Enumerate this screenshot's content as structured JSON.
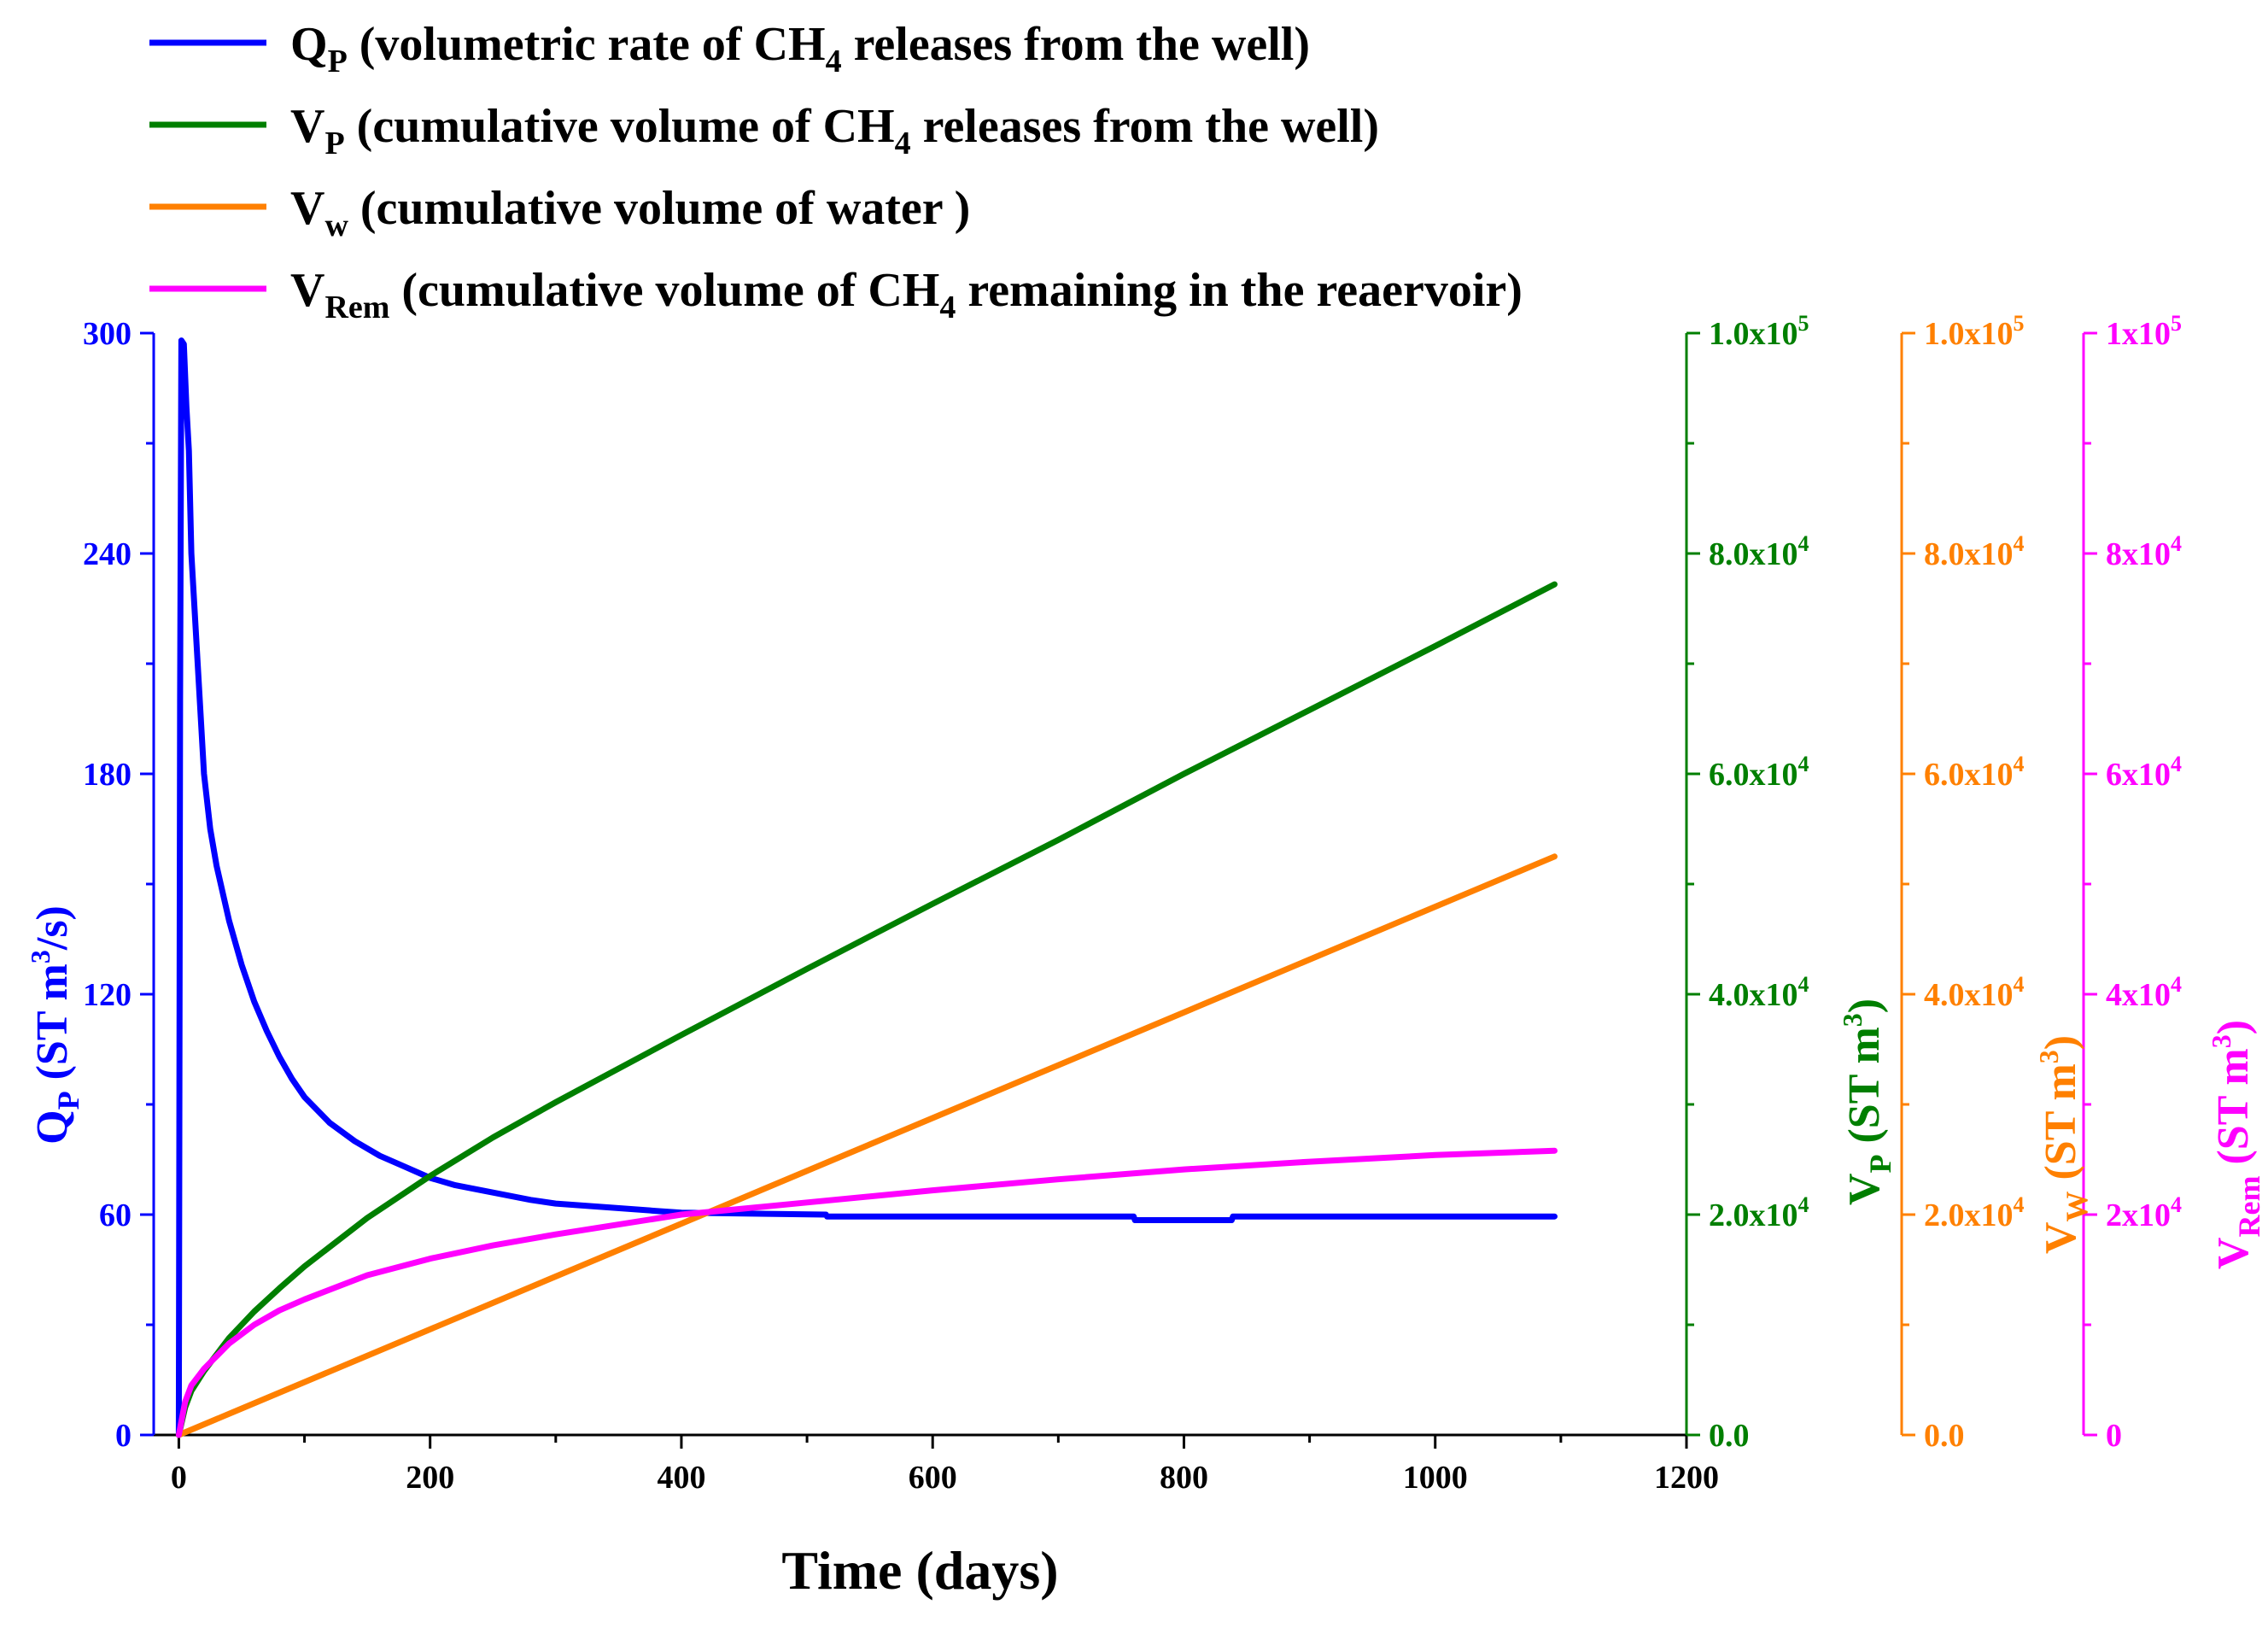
{
  "chart_data": {
    "type": "line",
    "x_axis": {
      "label": "Time (days)",
      "range": [
        -20,
        1200
      ],
      "ticks": [
        0,
        200,
        400,
        600,
        800,
        1000,
        1200
      ],
      "tick_labels": [
        "0",
        "200",
        "400",
        "600",
        "800",
        "1000",
        "1200"
      ]
    },
    "y_axes": [
      {
        "id": "qp",
        "color": "#0000ff",
        "title": {
          "main": "Q",
          "sub": "P",
          "rest1": " (ST m",
          "sup": "3",
          "rest2": "/s)"
        },
        "range": [
          0,
          300
        ],
        "ticks": [
          0,
          60,
          120,
          180,
          240,
          300
        ],
        "tick_labels": [
          "0",
          "60",
          "120",
          "180",
          "240",
          "300"
        ]
      },
      {
        "id": "vp",
        "color": "#007f00",
        "title": {
          "main": "V",
          "sub": "P",
          "rest1": " (ST m",
          "sup": "3",
          "rest2": ")"
        },
        "range": [
          0,
          100000
        ],
        "ticks": [
          0,
          20000,
          40000,
          60000,
          80000,
          100000
        ],
        "tick_labels": [
          {
            "base": "0.0",
            "exp": ""
          },
          {
            "base": "2.0x10",
            "exp": "4"
          },
          {
            "base": "4.0x10",
            "exp": "4"
          },
          {
            "base": "6.0x10",
            "exp": "4"
          },
          {
            "base": "8.0x10",
            "exp": "4"
          },
          {
            "base": "1.0x10",
            "exp": "5"
          }
        ]
      },
      {
        "id": "vw",
        "color": "#ff8000",
        "title": {
          "main": "V",
          "sub": "W",
          "rest1": " (ST m",
          "sup": "3",
          "rest2": ")"
        },
        "range": [
          0,
          100000
        ],
        "ticks": [
          0,
          20000,
          40000,
          60000,
          80000,
          100000
        ],
        "tick_labels": [
          {
            "base": "0.0",
            "exp": ""
          },
          {
            "base": "2.0x10",
            "exp": "4"
          },
          {
            "base": "4.0x10",
            "exp": "4"
          },
          {
            "base": "6.0x10",
            "exp": "4"
          },
          {
            "base": "8.0x10",
            "exp": "4"
          },
          {
            "base": "1.0x10",
            "exp": "5"
          }
        ]
      },
      {
        "id": "vrem",
        "color": "#ff00ff",
        "title": {
          "main": "V",
          "sub": "Rem",
          "rest1": "  (ST m",
          "sup": "3",
          "rest2": ")"
        },
        "range": [
          0,
          100000
        ],
        "ticks": [
          0,
          20000,
          40000,
          60000,
          80000,
          100000
        ],
        "tick_labels": [
          {
            "base": "0",
            "exp": ""
          },
          {
            "base": "2x10",
            "exp": "4"
          },
          {
            "base": "4x10",
            "exp": "4"
          },
          {
            "base": "6x10",
            "exp": "4"
          },
          {
            "base": "8x10",
            "exp": "4"
          },
          {
            "base": "1x10",
            "exp": "5"
          }
        ]
      }
    ],
    "series": [
      {
        "name": "Q_P",
        "axis": "qp",
        "color": "#0000ff",
        "legend": {
          "main": "Q",
          "sub": "P",
          "text": " (volumetric rate of CH",
          "sub2": "4",
          "text2": " releases from the well)"
        },
        "points": [
          [
            0,
            0
          ],
          [
            1,
            200
          ],
          [
            2,
            298
          ],
          [
            4,
            297
          ],
          [
            6,
            280
          ],
          [
            8,
            268
          ],
          [
            10,
            240
          ],
          [
            15,
            210
          ],
          [
            20,
            180
          ],
          [
            25,
            165
          ],
          [
            30,
            155
          ],
          [
            40,
            140
          ],
          [
            50,
            128
          ],
          [
            60,
            118
          ],
          [
            70,
            110
          ],
          [
            80,
            103
          ],
          [
            90,
            97
          ],
          [
            100,
            92
          ],
          [
            120,
            85
          ],
          [
            140,
            80
          ],
          [
            160,
            76
          ],
          [
            180,
            73
          ],
          [
            200,
            70
          ],
          [
            220,
            68
          ],
          [
            250,
            66
          ],
          [
            280,
            64
          ],
          [
            300,
            63
          ],
          [
            340,
            62
          ],
          [
            380,
            61
          ],
          [
            400,
            60.5
          ],
          [
            515,
            60
          ],
          [
            516,
            59.5
          ],
          [
            760,
            59.5
          ],
          [
            761,
            58.5
          ],
          [
            838,
            58.5
          ],
          [
            839,
            59.5
          ],
          [
            1095,
            59.5
          ]
        ]
      },
      {
        "name": "V_P",
        "axis": "vp",
        "color": "#007f00",
        "legend": {
          "main": "V",
          "sub": "P",
          "text": " (cumulative volume of CH",
          "sub2": "4",
          "text2": " releases from the well)"
        },
        "points": [
          [
            0,
            0
          ],
          [
            5,
            2500
          ],
          [
            10,
            4000
          ],
          [
            20,
            5800
          ],
          [
            40,
            8800
          ],
          [
            60,
            11200
          ],
          [
            80,
            13300
          ],
          [
            100,
            15300
          ],
          [
            150,
            19700
          ],
          [
            200,
            23500
          ],
          [
            250,
            27000
          ],
          [
            300,
            30200
          ],
          [
            400,
            36300
          ],
          [
            500,
            42300
          ],
          [
            600,
            48200
          ],
          [
            700,
            54000
          ],
          [
            800,
            60000
          ],
          [
            900,
            65800
          ],
          [
            1000,
            71600
          ],
          [
            1095,
            77200
          ]
        ]
      },
      {
        "name": "V_w",
        "axis": "vw",
        "color": "#ff8000",
        "legend": {
          "main": "V",
          "sub": "w",
          "text": " (cumulative volume of water )",
          "sub2": "",
          "text2": ""
        },
        "points": [
          [
            0,
            0
          ],
          [
            1095,
            52500
          ]
        ]
      },
      {
        "name": "V_Rem",
        "axis": "vrem",
        "color": "#ff00ff",
        "legend": {
          "main": "V",
          "sub": "Rem",
          "text": " (cumulative volume of CH",
          "sub2": "4",
          "text2": " remaining in the reaervoir)"
        },
        "points": [
          [
            0,
            0
          ],
          [
            5,
            3000
          ],
          [
            10,
            4500
          ],
          [
            20,
            6000
          ],
          [
            40,
            8300
          ],
          [
            60,
            10000
          ],
          [
            80,
            11300
          ],
          [
            100,
            12300
          ],
          [
            150,
            14500
          ],
          [
            200,
            16000
          ],
          [
            250,
            17200
          ],
          [
            300,
            18200
          ],
          [
            400,
            20000
          ],
          [
            500,
            21100
          ],
          [
            600,
            22200
          ],
          [
            700,
            23200
          ],
          [
            800,
            24100
          ],
          [
            900,
            24800
          ],
          [
            1000,
            25400
          ],
          [
            1095,
            25800
          ]
        ]
      }
    ]
  }
}
